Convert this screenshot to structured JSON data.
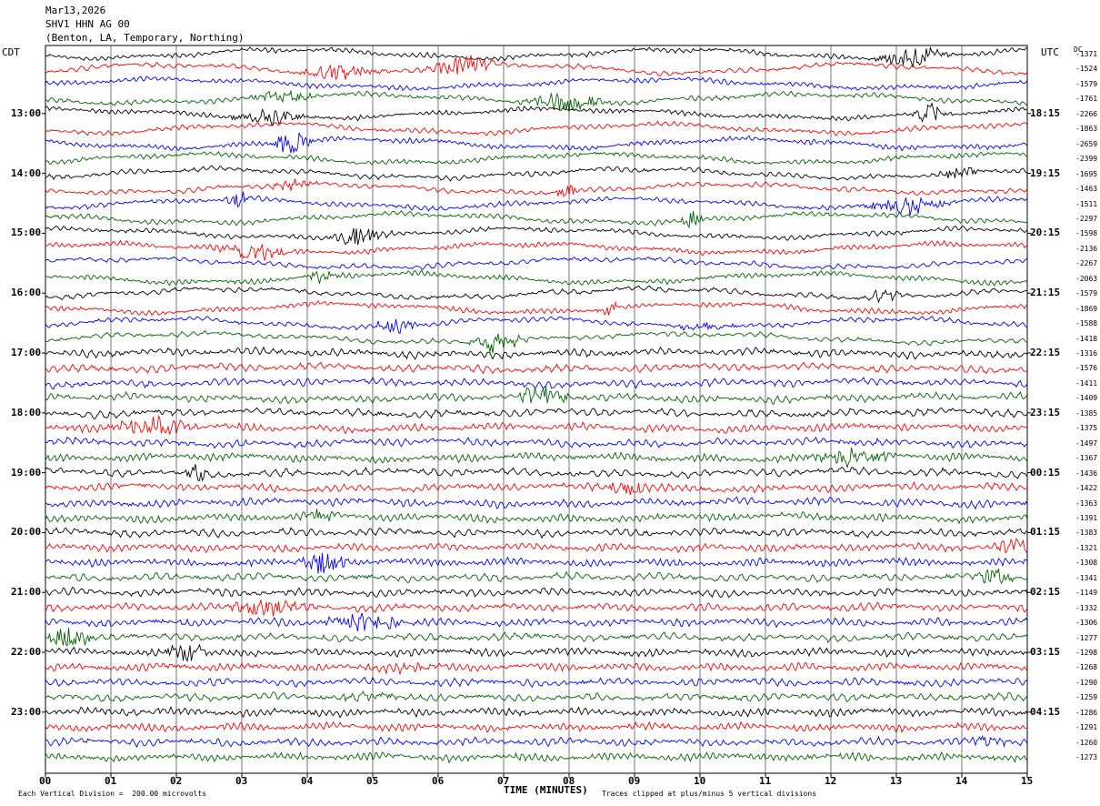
{
  "header": {
    "date": "Mar13,2026",
    "station": "SHV1 HHN AG 00",
    "location": "(Benton, LA, Temporary, Northing)"
  },
  "labels": {
    "left_tz": "CDT",
    "right_tz": "UTC",
    "dc": "DC"
  },
  "footer": {
    "scale": "Each Vertical Division =  200.00 microvolts",
    "clip": "Traces clipped at plus/minus 5 vertical divisions",
    "xaxis_title": "TIME (MINUTES)"
  },
  "chart_data": {
    "type": "line",
    "xlabel": "TIME (MINUTES)",
    "xlim": [
      0,
      15
    ],
    "x_ticks": [
      "00",
      "01",
      "02",
      "03",
      "04",
      "05",
      "06",
      "07",
      "08",
      "09",
      "10",
      "11",
      "12",
      "13",
      "14",
      "15"
    ],
    "left_hour_labels": [
      "13:00",
      "14:00",
      "15:00",
      "16:00",
      "17:00",
      "18:00",
      "19:00",
      "20:00",
      "21:00",
      "22:00",
      "23:00"
    ],
    "right_hour_labels": [
      "18:15",
      "19:15",
      "20:15",
      "21:15",
      "22:15",
      "23:15",
      "00:15",
      "01:15",
      "02:15",
      "03:15",
      "04:15"
    ],
    "trace_colors": [
      "#000000",
      "#ff0000",
      "#0000ff",
      "#006400"
    ],
    "trace_count": 48,
    "traces_per_hour": 4,
    "dc_offsets": [
      "-1371",
      "-1524",
      "-1579",
      "-1761",
      "-2266",
      "-1863",
      "-2659",
      "-2399",
      "-1695",
      "-1463",
      "-1511",
      "-2297",
      "-1598",
      "-2136",
      "-2267",
      "-2063",
      "-1579",
      "-1869",
      "-1588",
      "-1418",
      "-1316",
      "-1576",
      "-1411",
      "-1409",
      "-1385",
      "-1375",
      "-1497",
      "-1367",
      "-1436",
      "-1422",
      "-1363",
      "-1391",
      "-1383",
      "-1321",
      "-1308",
      "-1341",
      "-1149",
      "-1332",
      "-1306",
      "-1277",
      "-1298",
      "-1268",
      "-1290",
      "-1259",
      "-1286",
      "-1291",
      "-1260",
      "-1273"
    ]
  }
}
